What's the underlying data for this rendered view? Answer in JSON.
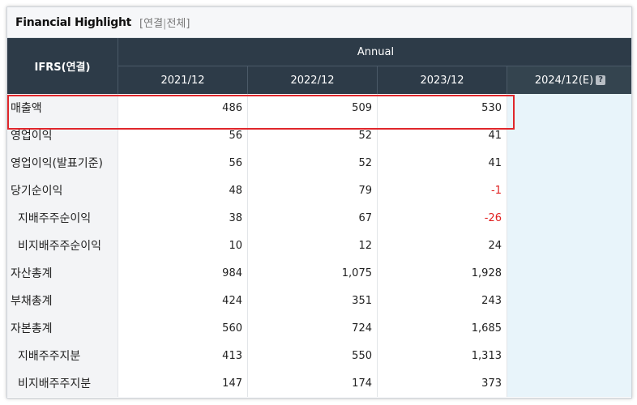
{
  "header": {
    "title": "Financial Highlight",
    "tabs": [
      "연결",
      "전체"
    ],
    "bracket_open": "[",
    "bracket_sep": "|",
    "bracket_close": "]"
  },
  "table": {
    "corner_label": "IFRS(연결)",
    "group_label": "Annual",
    "columns": [
      "2021/12",
      "2022/12",
      "2023/12",
      "2024/12(E)"
    ],
    "help_glyph": "?",
    "rows": [
      {
        "label": "매출액",
        "values": [
          "486",
          "509",
          "530",
          ""
        ]
      },
      {
        "label": "영업이익",
        "values": [
          "56",
          "52",
          "41",
          ""
        ]
      },
      {
        "label": "영업이익(발표기준)",
        "values": [
          "56",
          "52",
          "41",
          ""
        ]
      },
      {
        "label": "당기순이익",
        "values": [
          "48",
          "79",
          "-1",
          ""
        ]
      },
      {
        "label": "지배주주순이익",
        "values": [
          "38",
          "67",
          "-26",
          ""
        ]
      },
      {
        "label": "비지배주주순이익",
        "values": [
          "10",
          "12",
          "24",
          ""
        ]
      },
      {
        "label": "자산총계",
        "values": [
          "984",
          "1,075",
          "1,928",
          ""
        ]
      },
      {
        "label": "부채총계",
        "values": [
          "424",
          "351",
          "243",
          ""
        ]
      },
      {
        "label": "자본총계",
        "values": [
          "560",
          "724",
          "1,685",
          ""
        ]
      },
      {
        "label": "지배주주지분",
        "values": [
          "413",
          "550",
          "1,313",
          ""
        ]
      },
      {
        "label": "비지배주주지분",
        "values": [
          "147",
          "174",
          "373",
          ""
        ]
      }
    ]
  },
  "colors": {
    "header_bg": "#2d3b48",
    "highlight": "#e0262b",
    "negative": "#e02020",
    "estimate_bg": "#e8f4fa"
  }
}
